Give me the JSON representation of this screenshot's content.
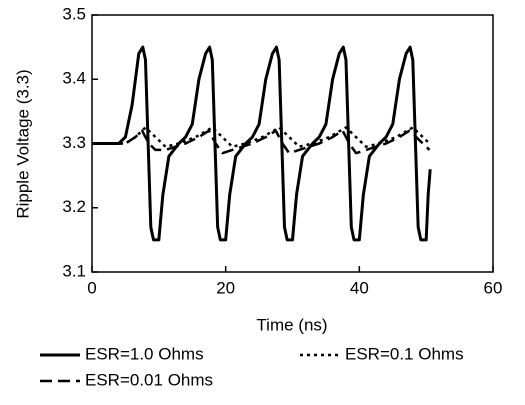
{
  "chart_data": {
    "type": "line",
    "xlabel": "Time (ns)",
    "ylabel": "Ripple Voltage (3.3)",
    "xlim": [
      0,
      60
    ],
    "xticks": [
      0,
      20,
      40,
      60
    ],
    "ylim": [
      3.1,
      3.5
    ],
    "yticks": [
      3.1,
      3.2,
      3.3,
      3.4,
      3.5
    ],
    "legend": "bottom",
    "series": [
      {
        "name": "ESR=1.0 Ohms",
        "color": "#000000",
        "dash": "solid",
        "x": [
          0,
          4,
          5,
          6,
          7,
          7.6,
          8,
          8.4,
          8.8,
          9.2,
          10,
          10.6,
          11.5,
          13,
          14,
          15,
          16,
          17,
          17.6,
          18,
          18.4,
          18.8,
          19.2,
          20,
          20.6,
          21.5,
          23,
          24,
          25,
          26,
          27,
          27.6,
          28,
          28.4,
          28.8,
          29.2,
          30,
          30.6,
          31.5,
          33,
          34,
          35,
          36,
          37,
          37.6,
          38,
          38.4,
          38.8,
          39.2,
          40,
          40.6,
          41.5,
          43,
          44,
          45,
          46,
          47,
          47.6,
          48,
          48.4,
          48.8,
          49.2,
          50,
          50.3,
          50.6
        ],
        "values": [
          3.3,
          3.3,
          3.31,
          3.36,
          3.44,
          3.45,
          3.43,
          3.3,
          3.17,
          3.15,
          3.15,
          3.22,
          3.28,
          3.3,
          3.31,
          3.33,
          3.4,
          3.44,
          3.45,
          3.43,
          3.3,
          3.17,
          3.15,
          3.15,
          3.22,
          3.28,
          3.3,
          3.31,
          3.33,
          3.4,
          3.44,
          3.45,
          3.43,
          3.3,
          3.17,
          3.15,
          3.15,
          3.22,
          3.28,
          3.3,
          3.31,
          3.33,
          3.4,
          3.44,
          3.45,
          3.43,
          3.3,
          3.17,
          3.15,
          3.15,
          3.22,
          3.28,
          3.3,
          3.31,
          3.33,
          3.4,
          3.44,
          3.45,
          3.43,
          3.3,
          3.17,
          3.15,
          3.15,
          3.22,
          3.26
        ]
      },
      {
        "name": "ESR=0.1 Ohms",
        "color": "#000000",
        "dash": "dotted",
        "x": [
          0,
          5,
          6.5,
          8,
          9.5,
          11,
          13,
          15.5,
          18,
          19.5,
          21,
          23,
          25.5,
          28,
          29.5,
          31,
          33,
          35.5,
          38,
          39.5,
          41,
          43,
          45.5,
          48,
          49.5,
          50.5
        ],
        "values": [
          3.3,
          3.3,
          3.31,
          3.325,
          3.31,
          3.295,
          3.3,
          3.31,
          3.325,
          3.31,
          3.295,
          3.3,
          3.31,
          3.325,
          3.31,
          3.295,
          3.3,
          3.31,
          3.325,
          3.31,
          3.295,
          3.3,
          3.31,
          3.325,
          3.31,
          3.3
        ]
      },
      {
        "name": "ESR=0.01 Ohms",
        "color": "#000000",
        "dash": "dashed",
        "x": [
          0,
          5,
          6.5,
          7.5,
          8.5,
          9.5,
          11,
          14,
          16,
          17.5,
          18.5,
          19.5,
          21,
          24,
          26,
          27.5,
          28.5,
          29.5,
          31,
          34,
          36,
          37.5,
          38.5,
          39.5,
          41,
          44,
          46,
          47.5,
          48.5,
          49.5,
          50.5
        ],
        "values": [
          3.3,
          3.3,
          3.31,
          3.32,
          3.3,
          3.29,
          3.29,
          3.3,
          3.31,
          3.32,
          3.3,
          3.285,
          3.29,
          3.3,
          3.31,
          3.32,
          3.3,
          3.285,
          3.29,
          3.3,
          3.31,
          3.32,
          3.3,
          3.285,
          3.29,
          3.3,
          3.31,
          3.32,
          3.31,
          3.3,
          3.29
        ]
      }
    ]
  }
}
